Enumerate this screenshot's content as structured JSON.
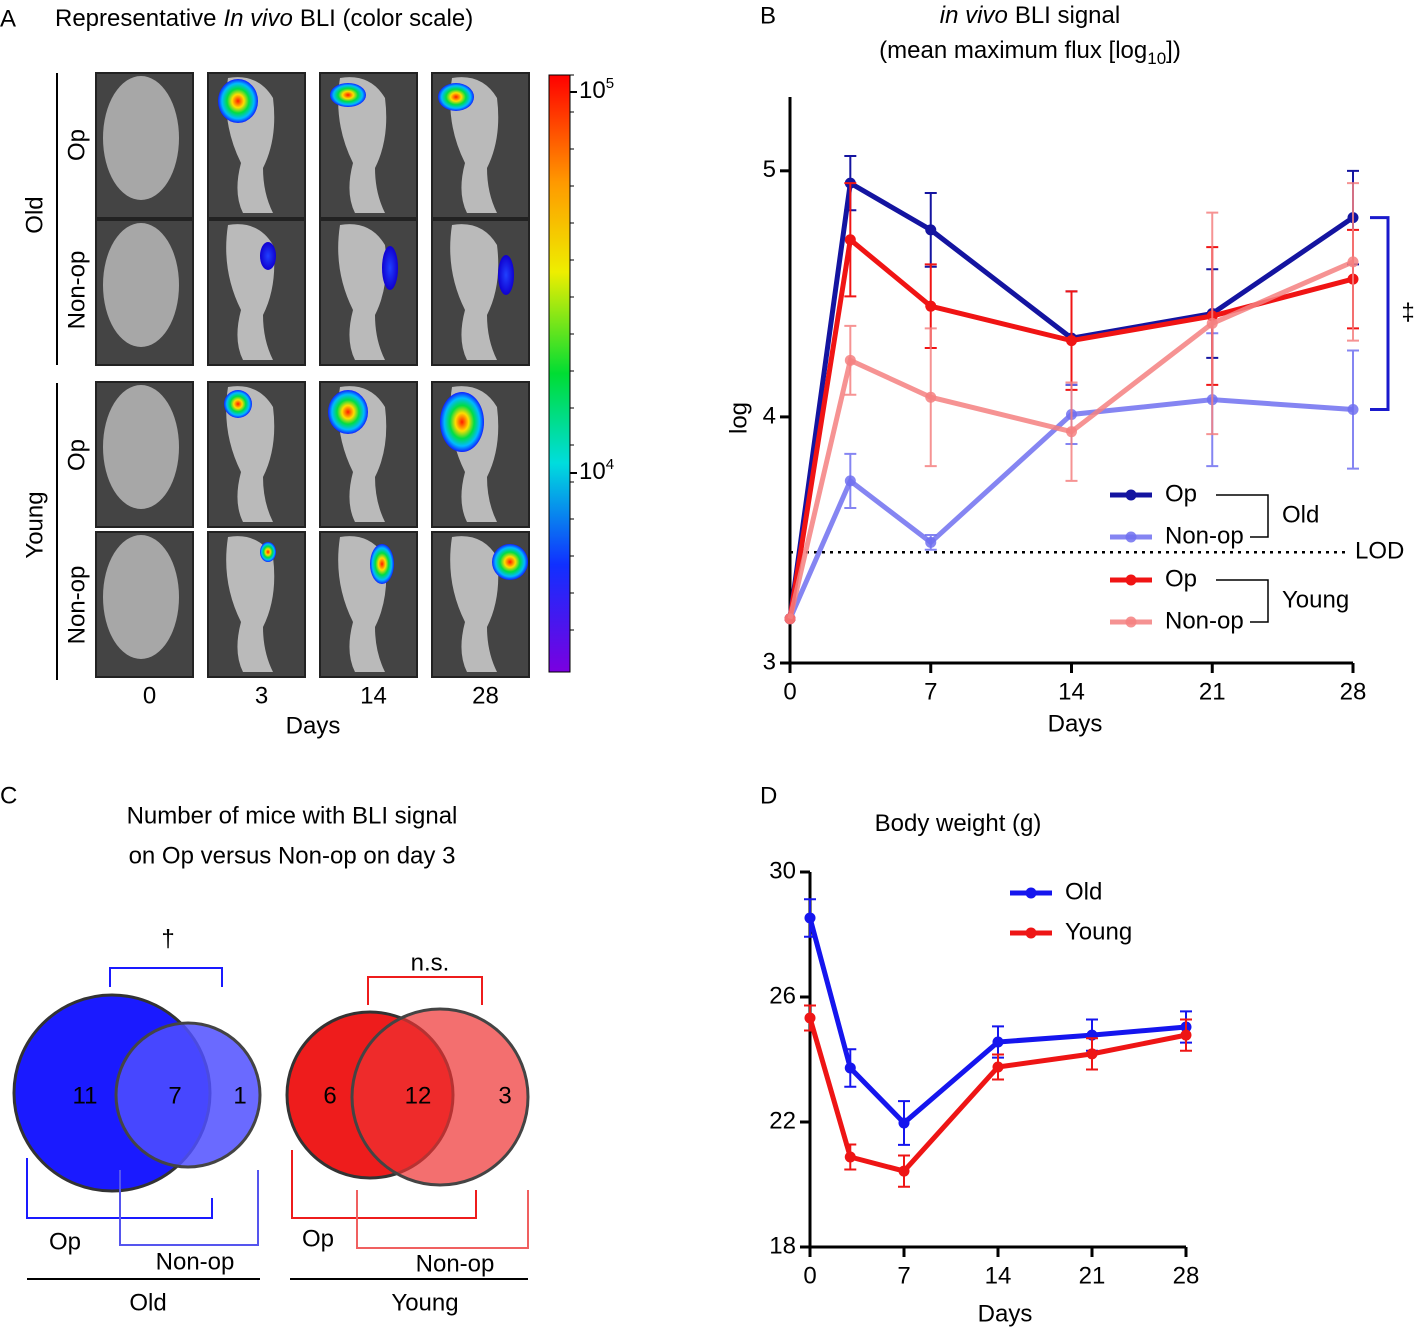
{
  "panel_a": {
    "label": "A",
    "title": [
      "Representative",
      "In vivo",
      "BLI (color scale)"
    ],
    "groups": [
      {
        "name": "Old",
        "rows": [
          "Op",
          "Non-op"
        ]
      },
      {
        "name": "Young",
        "rows": [
          "Op",
          "Non-op"
        ]
      }
    ],
    "columns": [
      "0",
      "3",
      "14",
      "28"
    ],
    "x_label": "Days",
    "colorbar_ticks": [
      [
        "10",
        "5"
      ],
      [
        "10",
        "4"
      ]
    ]
  },
  "panel_c": {
    "label": "C",
    "title": [
      "Number of mice with BLI signal",
      "on Op versus Non-op on day 3"
    ],
    "groups": [
      {
        "name": "Old",
        "op_label": "Op",
        "nonop_label": "Non-op",
        "significance": "†",
        "counts": [
          11,
          7,
          1
        ]
      },
      {
        "name": "Young",
        "op_label": "Op",
        "nonop_label": "Non-op",
        "significance": "n.s.",
        "counts": [
          6,
          12,
          3
        ]
      }
    ]
  },
  "chart_data": [
    {
      "type": "line",
      "label": "B",
      "title": [
        "in vivo",
        "BLI signal"
      ],
      "subtitle": [
        "(mean maximum flux [log",
        "10",
        "])"
      ],
      "x_label": "Days",
      "y_label": "log",
      "x": [
        0,
        3,
        7,
        14,
        21,
        28
      ],
      "xlim": [
        0,
        28
      ],
      "xticks": [
        0,
        7,
        14,
        21,
        28
      ],
      "ylim": [
        3,
        5.3
      ],
      "yticks": [
        3,
        4,
        5
      ],
      "reference_lines": [
        {
          "value": 3.45,
          "label": "LOD"
        }
      ],
      "annotations": [
        "‡"
      ],
      "groups": [
        {
          "name": "Old",
          "series": [
            {
              "name": "Op",
              "color": "#1414a0",
              "values": [
                3.18,
                4.95,
                4.76,
                4.32,
                4.42,
                4.81
              ],
              "errors": [
                0,
                0.11,
                0.15,
                0.19,
                0.18,
                0.19
              ]
            },
            {
              "name": "Non-op",
              "color": "#7070f0",
              "values": [
                3.18,
                3.74,
                3.49,
                4.01,
                4.07,
                4.03
              ],
              "errors": [
                0,
                0.11,
                0.03,
                0.12,
                0.27,
                0.24
              ]
            }
          ]
        },
        {
          "name": "Young",
          "series": [
            {
              "name": "Op",
              "color": "#f01414",
              "values": [
                3.18,
                4.72,
                4.45,
                4.31,
                4.41,
                4.56
              ],
              "errors": [
                0,
                0.23,
                0.17,
                0.2,
                0.28,
                0.2
              ]
            },
            {
              "name": "Non-op",
              "color": "#f48080",
              "values": [
                3.18,
                4.23,
                4.08,
                3.94,
                4.38,
                4.63
              ],
              "errors": [
                0,
                0.14,
                0.28,
                0.2,
                0.45,
                0.32
              ]
            }
          ]
        }
      ]
    },
    {
      "type": "line",
      "label": "D",
      "title": [
        "Body weight (g)"
      ],
      "x_label": "Days",
      "x": [
        0,
        3,
        7,
        14,
        21,
        28
      ],
      "xlim": [
        0,
        28
      ],
      "xticks": [
        0,
        7,
        14,
        21,
        28
      ],
      "ylim": [
        18,
        30
      ],
      "yticks": [
        18,
        22,
        26,
        30
      ],
      "series": [
        {
          "name": "Old",
          "color": "#1515ee",
          "values": [
            28.53,
            23.73,
            21.97,
            24.56,
            24.78,
            25.04
          ],
          "errors": [
            0.6,
            0.6,
            0.7,
            0.5,
            0.5,
            0.5
          ]
        },
        {
          "name": "Young",
          "color": "#ee1515",
          "values": [
            25.33,
            20.88,
            20.43,
            23.76,
            24.18,
            24.78
          ],
          "errors": [
            0.4,
            0.4,
            0.5,
            0.4,
            0.5,
            0.5
          ]
        }
      ]
    }
  ]
}
